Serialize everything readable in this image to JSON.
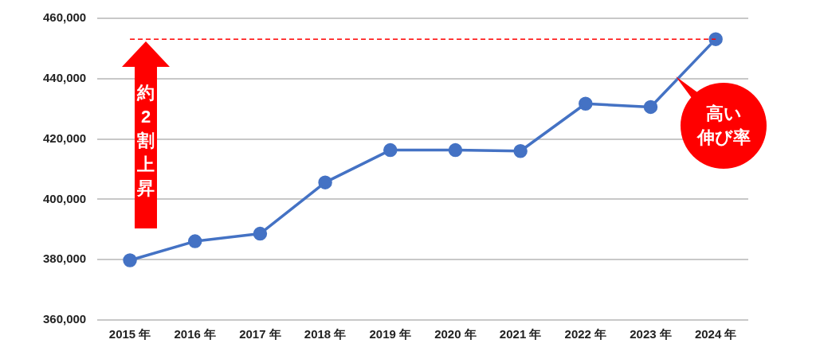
{
  "chart_data": {
    "type": "line",
    "categories": [
      "2015 年",
      "2016 年",
      "2017 年",
      "2018 年",
      "2019 年",
      "2020 年",
      "2021 年",
      "2022 年",
      "2023 年",
      "2024 年"
    ],
    "series": [
      {
        "color": "#4472c4",
        "values": [
          379800,
          386100,
          388600,
          405600,
          416300,
          416300,
          416000,
          431700,
          430600,
          453100
        ]
      }
    ],
    "ylim": [
      360000,
      460000
    ],
    "yticks": [
      {
        "value": 360000,
        "label": "360,000"
      },
      {
        "value": 380000,
        "label": "380,000"
      },
      {
        "value": 400000,
        "label": "400,000"
      },
      {
        "value": 420000,
        "label": "420,000"
      },
      {
        "value": 440000,
        "label": "440,000"
      },
      {
        "value": 460000,
        "label": "460,000"
      }
    ],
    "grid": "y",
    "legend": false,
    "marker": "circle",
    "line_style": "solid",
    "ref_lines": [
      {
        "axis": "y",
        "value": 453100,
        "color": "#ff0000",
        "line_style": "dashed"
      }
    ],
    "annotations": [
      "約2割上昇",
      "高い",
      "伸び率"
    ]
  }
}
